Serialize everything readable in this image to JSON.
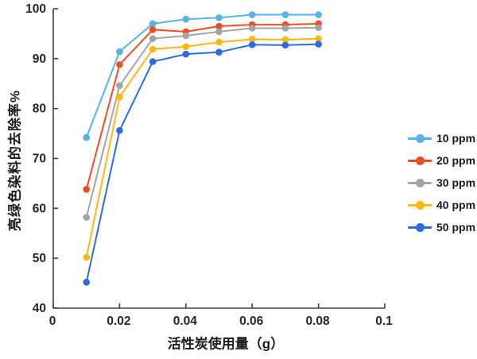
{
  "chart_data": {
    "type": "line",
    "title": "",
    "xlabel": "活性炭使用量（g）",
    "ylabel": "亮绿色染料的去除率%",
    "x": [
      0.01,
      0.02,
      0.03,
      0.04,
      0.05,
      0.06,
      0.07,
      0.08
    ],
    "series": [
      {
        "name": "10 ppm",
        "color": "#56B2E8",
        "values": [
          74.2,
          91.4,
          97.0,
          97.9,
          98.2,
          98.8,
          98.8,
          98.8
        ]
      },
      {
        "name": "20 ppm",
        "color": "#ED4F23",
        "values": [
          63.8,
          88.8,
          95.8,
          95.4,
          96.5,
          96.8,
          96.8,
          97.0
        ]
      },
      {
        "name": "30 ppm",
        "color": "#A2A5A8",
        "values": [
          58.2,
          84.6,
          94.0,
          94.6,
          95.4,
          96.1,
          96.1,
          96.2
        ]
      },
      {
        "name": "40 ppm",
        "color": "#FFB712",
        "values": [
          50.2,
          82.3,
          91.9,
          92.4,
          93.3,
          93.9,
          93.8,
          94.0
        ]
      },
      {
        "name": "50 ppm",
        "color": "#2E6BE2",
        "values": [
          45.2,
          75.6,
          89.4,
          90.9,
          91.3,
          92.8,
          92.7,
          92.9
        ]
      }
    ],
    "xlim": [
      0,
      0.1
    ],
    "ylim": [
      40,
      100
    ],
    "x_ticks": {
      "values": [
        0,
        0.02,
        0.04,
        0.06,
        0.08,
        0.1
      ],
      "labels": [
        "0",
        "0.02",
        "0.04",
        "0.06",
        "0.08",
        "0.1"
      ]
    },
    "y_ticks": {
      "values": [
        40,
        50,
        60,
        70,
        80,
        90,
        100
      ],
      "labels": [
        "40",
        "50",
        "60",
        "70",
        "80",
        "90",
        "100"
      ]
    },
    "grid": false,
    "legend_position": "right",
    "colors": {
      "axis_line": "#404040",
      "tick_text": "#262626"
    }
  }
}
